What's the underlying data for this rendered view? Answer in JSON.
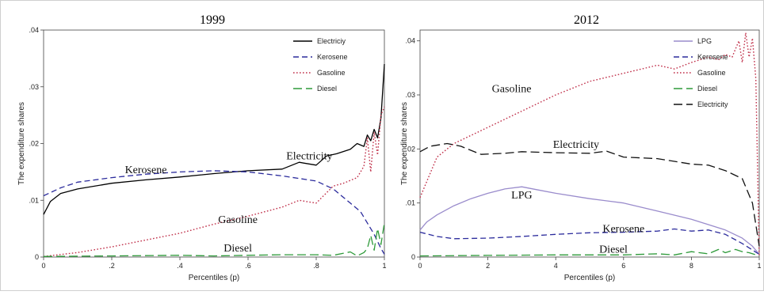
{
  "chart_data": [
    {
      "type": "line",
      "title": "1999",
      "xlabel": "Percentiles (p)",
      "ylabel": "The expenditure shares",
      "xlim": [
        0,
        1
      ],
      "ylim": [
        0,
        0.04
      ],
      "x_ticks": [
        "0",
        ".2",
        ".4",
        ".6",
        ".8",
        "1"
      ],
      "y_ticks": [
        "0",
        ".01",
        ".02",
        ".03",
        ".04"
      ],
      "legend_position": "top-right",
      "series": [
        {
          "name": "Electriciy",
          "color": "#000000",
          "dash": "solid",
          "x": [
            0,
            0.02,
            0.05,
            0.1,
            0.2,
            0.3,
            0.4,
            0.5,
            0.6,
            0.7,
            0.75,
            0.8,
            0.83,
            0.86,
            0.9,
            0.92,
            0.94,
            0.95,
            0.96,
            0.97,
            0.98,
            0.99,
            1.0
          ],
          "y": [
            0.0075,
            0.0098,
            0.0112,
            0.012,
            0.013,
            0.0136,
            0.0141,
            0.0147,
            0.0152,
            0.0155,
            0.0167,
            0.0162,
            0.0178,
            0.0182,
            0.019,
            0.02,
            0.0195,
            0.0215,
            0.0205,
            0.0225,
            0.021,
            0.0245,
            0.034
          ]
        },
        {
          "name": "Kerosene",
          "color": "#2b2b9c",
          "dash": "dash",
          "x": [
            0,
            0.05,
            0.1,
            0.2,
            0.3,
            0.4,
            0.5,
            0.6,
            0.7,
            0.8,
            0.85,
            0.9,
            0.93,
            0.95,
            0.97,
            0.99,
            1.0
          ],
          "y": [
            0.0108,
            0.0122,
            0.0132,
            0.014,
            0.0146,
            0.015,
            0.0152,
            0.015,
            0.0143,
            0.0134,
            0.012,
            0.0095,
            0.008,
            0.006,
            0.004,
            0.0015,
            0.0005
          ]
        },
        {
          "name": "Gasoline",
          "color": "#c0304a",
          "dash": "dot",
          "x": [
            0,
            0.1,
            0.2,
            0.3,
            0.4,
            0.5,
            0.6,
            0.7,
            0.75,
            0.8,
            0.85,
            0.88,
            0.9,
            0.92,
            0.94,
            0.95,
            0.96,
            0.97,
            0.98,
            0.99,
            1.0
          ],
          "y": [
            0.0001,
            0.0008,
            0.0018,
            0.003,
            0.0042,
            0.0058,
            0.0072,
            0.0088,
            0.01,
            0.0095,
            0.0125,
            0.013,
            0.0135,
            0.014,
            0.016,
            0.021,
            0.015,
            0.022,
            0.018,
            0.025,
            0.0265
          ]
        },
        {
          "name": "Diesel",
          "color": "#2e9a3a",
          "dash": "longdash",
          "x": [
            0,
            0.2,
            0.4,
            0.5,
            0.6,
            0.7,
            0.8,
            0.85,
            0.9,
            0.92,
            0.94,
            0.95,
            0.96,
            0.97,
            0.98,
            0.99,
            1.0
          ],
          "y": [
            0.0001,
            0.0002,
            0.0003,
            0.0002,
            0.0003,
            0.0004,
            0.0004,
            0.0003,
            0.0009,
            0.0002,
            0.0008,
            0.0015,
            0.0038,
            0.0012,
            0.005,
            0.0022,
            0.006
          ]
        }
      ],
      "annotations": [
        {
          "text": "Kerosene",
          "x": 0.3,
          "y": 0.0148
        },
        {
          "text": "Electricity",
          "x": 0.78,
          "y": 0.0172
        },
        {
          "text": "Gasoline",
          "x": 0.57,
          "y": 0.006
        },
        {
          "text": "Diesel",
          "x": 0.57,
          "y": 0.001
        }
      ]
    },
    {
      "type": "line",
      "title": "2012",
      "xlabel": "Percentiles (p)",
      "ylabel": "The expenditure shares",
      "xlim": [
        0,
        1
      ],
      "ylim": [
        0,
        0.042
      ],
      "x_ticks": [
        "0",
        "2",
        "4",
        "6",
        "8",
        "1"
      ],
      "y_ticks": [
        "0",
        ".01",
        ".02",
        ".03",
        ".04"
      ],
      "legend_position": "top-right",
      "series": [
        {
          "name": "LPG",
          "color": "#9a8ccc",
          "dash": "solid",
          "x": [
            0,
            0.02,
            0.05,
            0.1,
            0.15,
            0.2,
            0.25,
            0.3,
            0.35,
            0.4,
            0.5,
            0.6,
            0.7,
            0.8,
            0.85,
            0.9,
            0.95,
            0.98,
            1.0
          ],
          "y": [
            0.005,
            0.0065,
            0.0078,
            0.0095,
            0.0108,
            0.0118,
            0.0126,
            0.013,
            0.0124,
            0.0118,
            0.0108,
            0.01,
            0.0085,
            0.007,
            0.006,
            0.005,
            0.0035,
            0.002,
            0.0005
          ]
        },
        {
          "name": "Kerosene",
          "color": "#2b2b9c",
          "dash": "dash",
          "x": [
            0,
            0.05,
            0.1,
            0.2,
            0.3,
            0.4,
            0.5,
            0.6,
            0.7,
            0.75,
            0.8,
            0.85,
            0.9,
            0.95,
            1.0
          ],
          "y": [
            0.0046,
            0.0038,
            0.0034,
            0.0035,
            0.0038,
            0.0042,
            0.0045,
            0.0046,
            0.0048,
            0.0052,
            0.0048,
            0.005,
            0.0042,
            0.0025,
            0.0005
          ]
        },
        {
          "name": "Gasoline",
          "color": "#c0304a",
          "dash": "dot",
          "x": [
            0,
            0.05,
            0.1,
            0.2,
            0.3,
            0.4,
            0.5,
            0.6,
            0.7,
            0.75,
            0.8,
            0.85,
            0.88,
            0.9,
            0.92,
            0.94,
            0.95,
            0.96,
            0.97,
            0.98,
            0.99,
            1.0
          ],
          "y": [
            0.011,
            0.0185,
            0.021,
            0.024,
            0.027,
            0.03,
            0.0325,
            0.034,
            0.0355,
            0.0348,
            0.036,
            0.037,
            0.0365,
            0.0375,
            0.037,
            0.04,
            0.036,
            0.0415,
            0.037,
            0.0405,
            0.033,
            0.0
          ]
        },
        {
          "name": "Diesel",
          "color": "#2e9a3a",
          "dash": "longdash",
          "x": [
            0,
            0.2,
            0.4,
            0.6,
            0.7,
            0.75,
            0.8,
            0.85,
            0.88,
            0.9,
            0.93,
            0.95,
            0.97,
            1.0
          ],
          "y": [
            0.0002,
            0.0003,
            0.0004,
            0.0004,
            0.0006,
            0.0004,
            0.001,
            0.0006,
            0.0014,
            0.0008,
            0.0014,
            0.001,
            0.0008,
            0.0002
          ]
        },
        {
          "name": "Electricity",
          "color": "#111111",
          "dash": "longdash",
          "x": [
            0,
            0.03,
            0.08,
            0.12,
            0.18,
            0.25,
            0.3,
            0.4,
            0.5,
            0.55,
            0.6,
            0.7,
            0.8,
            0.85,
            0.9,
            0.95,
            0.98,
            1.0
          ],
          "y": [
            0.0195,
            0.0205,
            0.021,
            0.0205,
            0.019,
            0.0192,
            0.0195,
            0.0193,
            0.0192,
            0.0196,
            0.0185,
            0.0182,
            0.0172,
            0.017,
            0.016,
            0.0145,
            0.01,
            0.002
          ]
        }
      ],
      "annotations": [
        {
          "text": "Gasoline",
          "x": 0.27,
          "y": 0.0305
        },
        {
          "text": "Electricity",
          "x": 0.46,
          "y": 0.0202
        },
        {
          "text": "LPG",
          "x": 0.3,
          "y": 0.0108
        },
        {
          "text": "Kerosene",
          "x": 0.6,
          "y": 0.0046
        },
        {
          "text": "Diesel",
          "x": 0.57,
          "y": 0.0008
        }
      ]
    }
  ]
}
